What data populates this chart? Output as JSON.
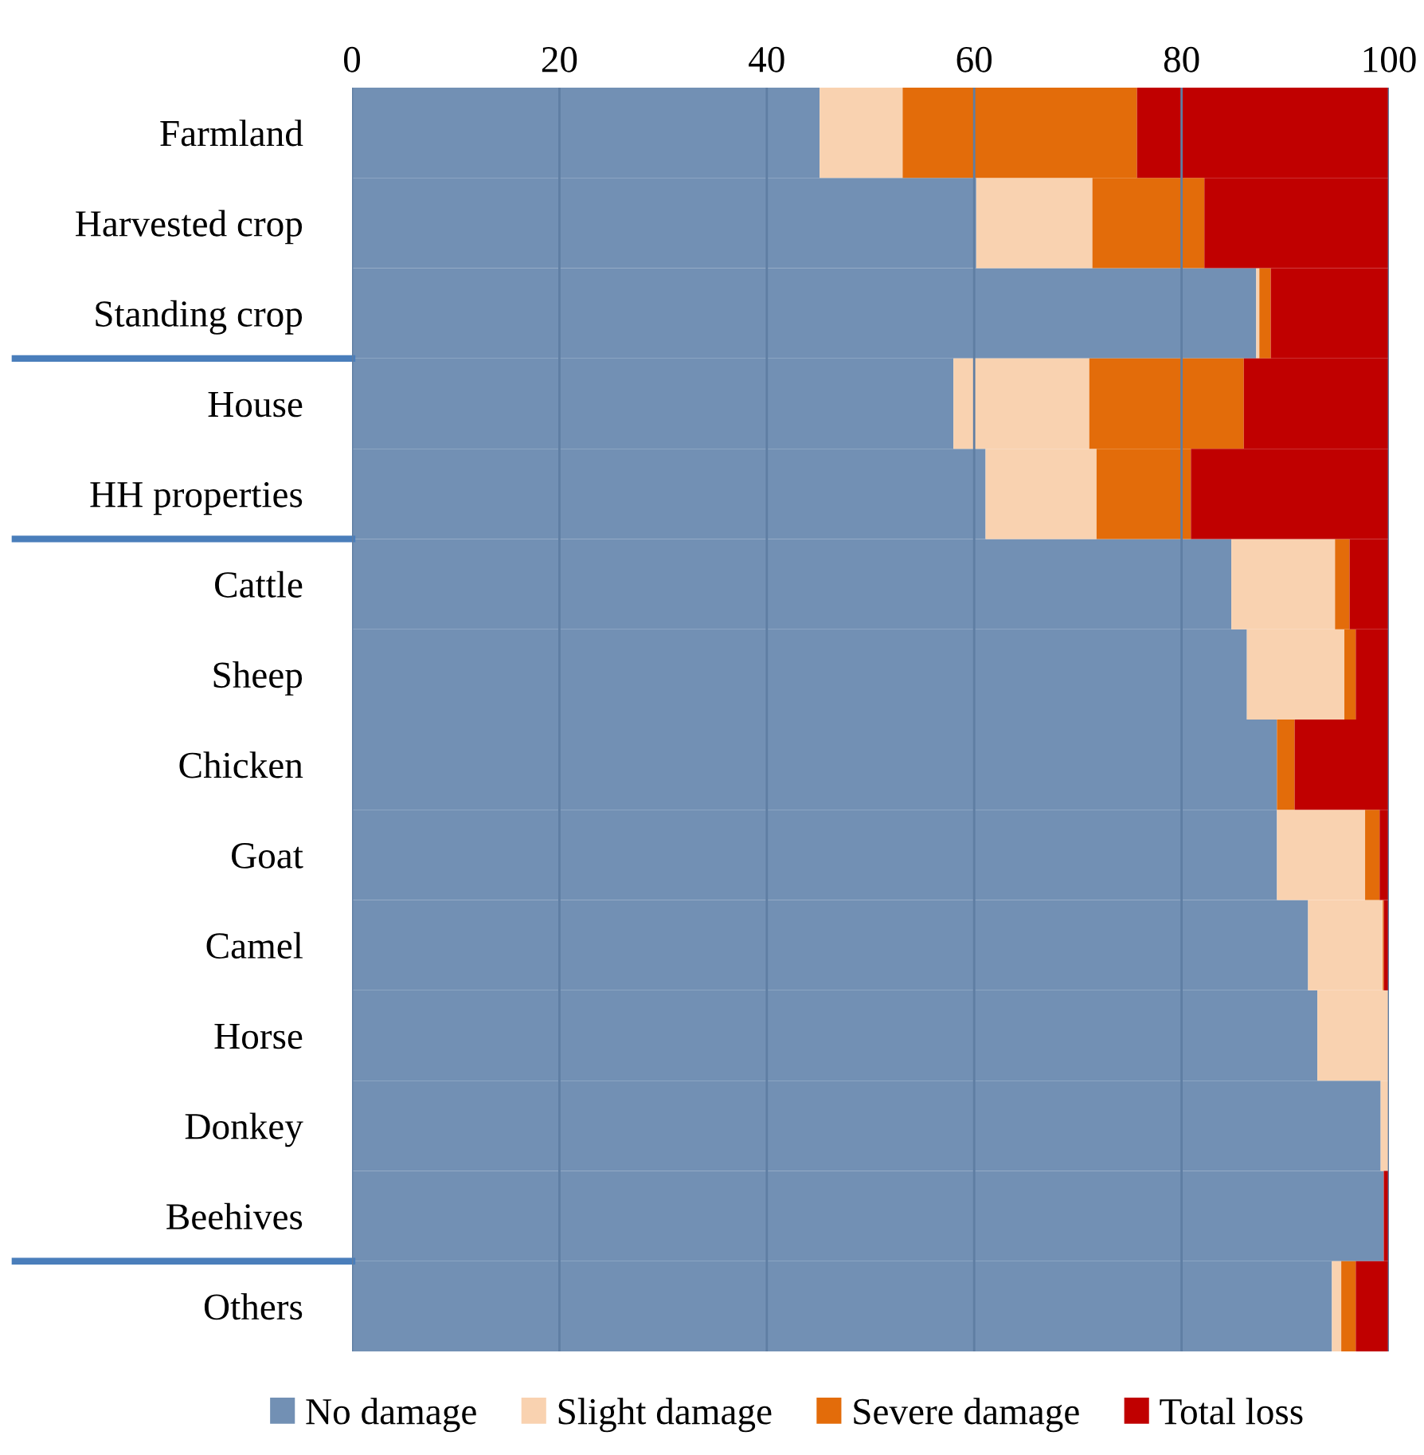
{
  "chart_data": {
    "type": "bar",
    "orientation": "horizontal",
    "stacked": true,
    "categories": [
      "Farmland",
      "Harvested crop",
      "Standing crop",
      "House",
      "HH properties",
      "Cattle",
      "Sheep",
      "Chicken",
      "Goat",
      "Camel",
      "Horse",
      "Donkey",
      "Beehives",
      "Others"
    ],
    "series": [
      {
        "name": "No damage",
        "color": "#7290b4",
        "values": [
          45.1,
          60.2,
          87.2,
          58.0,
          61.1,
          84.8,
          86.3,
          89.2,
          89.2,
          92.2,
          93.1,
          99.2,
          99.5,
          94.5
        ]
      },
      {
        "name": "Slight damage",
        "color": "#f9d2b0",
        "values": [
          8.0,
          11.2,
          0.3,
          13.1,
          10.7,
          10.0,
          9.4,
          0,
          8.5,
          7.2,
          6.9,
          0.8,
          0,
          0.9
        ]
      },
      {
        "name": "Severe damage",
        "color": "#e36c0a",
        "values": [
          22.6,
          10.8,
          1.1,
          14.9,
          9.1,
          1.4,
          1.1,
          1.7,
          1.4,
          0.1,
          0,
          0,
          0,
          1.4
        ]
      },
      {
        "name": "Total loss",
        "color": "#c00000",
        "values": [
          24.3,
          17.8,
          11.4,
          14.0,
          19.1,
          3.8,
          3.2,
          9.1,
          0.9,
          0.5,
          0,
          0,
          0.5,
          3.2
        ]
      }
    ],
    "xlim": [
      0,
      100
    ],
    "xticks": [
      0,
      20,
      40,
      60,
      80,
      100
    ],
    "grid": "x",
    "legend": "bottom"
  }
}
